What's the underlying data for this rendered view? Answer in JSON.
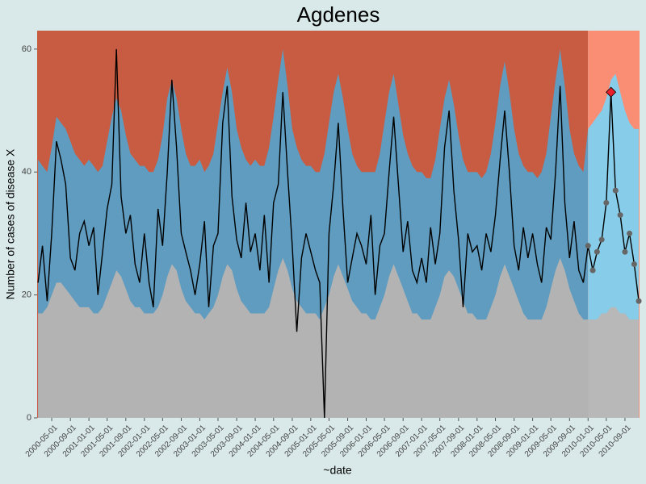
{
  "chart_data": {
    "type": "line",
    "title": "Agdenes",
    "x_label": "~date",
    "y_label": "Number of cases of disease X",
    "x": [
      "2000-02-01",
      "2000-03-01",
      "2000-04-01",
      "2000-05-01",
      "2000-06-01",
      "2000-07-01",
      "2000-08-01",
      "2000-09-01",
      "2000-10-01",
      "2000-11-01",
      "2000-12-01",
      "2001-01-01",
      "2001-02-01",
      "2001-03-01",
      "2001-04-01",
      "2001-05-01",
      "2001-06-01",
      "2001-07-01",
      "2001-08-01",
      "2001-09-01",
      "2001-10-01",
      "2001-11-01",
      "2001-12-01",
      "2002-01-01",
      "2002-02-01",
      "2002-03-01",
      "2002-04-01",
      "2002-05-01",
      "2002-06-01",
      "2002-07-01",
      "2002-08-01",
      "2002-09-01",
      "2002-10-01",
      "2002-11-01",
      "2002-12-01",
      "2003-01-01",
      "2003-02-01",
      "2003-03-01",
      "2003-04-01",
      "2003-05-01",
      "2003-06-01",
      "2003-07-01",
      "2003-08-01",
      "2003-09-01",
      "2003-10-01",
      "2003-11-01",
      "2003-12-01",
      "2004-01-01",
      "2004-02-01",
      "2004-03-01",
      "2004-04-01",
      "2004-05-01",
      "2004-06-01",
      "2004-07-01",
      "2004-08-01",
      "2004-09-01",
      "2004-10-01",
      "2004-11-01",
      "2004-12-01",
      "2005-01-01",
      "2005-02-01",
      "2005-03-01",
      "2005-04-01",
      "2005-05-01",
      "2005-06-01",
      "2005-07-01",
      "2005-08-01",
      "2005-09-01",
      "2005-10-01",
      "2005-11-01",
      "2005-12-01",
      "2006-01-01",
      "2006-02-01",
      "2006-03-01",
      "2006-04-01",
      "2006-05-01",
      "2006-06-01",
      "2006-07-01",
      "2006-08-01",
      "2006-09-01",
      "2006-10-01",
      "2006-11-01",
      "2006-12-01",
      "2007-01-01",
      "2007-02-01",
      "2007-03-01",
      "2007-04-01",
      "2007-05-01",
      "2007-06-01",
      "2007-07-01",
      "2007-08-01",
      "2007-09-01",
      "2007-10-01",
      "2007-11-01",
      "2007-12-01",
      "2008-01-01",
      "2008-02-01",
      "2008-03-01",
      "2008-04-01",
      "2008-05-01",
      "2008-06-01",
      "2008-07-01",
      "2008-08-01",
      "2008-09-01",
      "2008-10-01",
      "2008-11-01",
      "2008-12-01",
      "2009-01-01",
      "2009-02-01",
      "2009-03-01",
      "2009-04-01",
      "2009-05-01",
      "2009-06-01",
      "2009-07-01",
      "2009-08-01",
      "2009-09-01",
      "2009-10-01",
      "2009-11-01",
      "2009-12-01",
      "2010-01-01",
      "2010-02-01",
      "2010-03-01",
      "2010-04-01",
      "2010-05-01",
      "2010-06-01",
      "2010-07-01",
      "2010-08-01",
      "2010-09-01",
      "2010-10-01",
      "2010-11-01",
      "2010-12-01"
    ],
    "values": [
      22,
      28,
      19,
      30,
      45,
      42,
      38,
      26,
      24,
      30,
      32,
      28,
      31,
      20,
      27,
      34,
      38,
      60,
      36,
      30,
      33,
      25,
      22,
      30,
      22,
      18,
      34,
      28,
      40,
      55,
      44,
      30,
      27,
      24,
      20,
      25,
      32,
      18,
      28,
      30,
      48,
      54,
      36,
      29,
      26,
      35,
      27,
      30,
      24,
      33,
      22,
      35,
      38,
      53,
      40,
      28,
      14,
      26,
      30,
      27,
      24,
      22,
      0,
      30,
      38,
      48,
      34,
      22,
      26,
      30,
      28,
      25,
      33,
      20,
      28,
      30,
      40,
      49,
      38,
      27,
      32,
      24,
      22,
      26,
      22,
      31,
      25,
      30,
      44,
      50,
      37,
      29,
      18,
      30,
      27,
      28,
      24,
      30,
      27,
      33,
      42,
      50,
      40,
      28,
      24,
      31,
      26,
      30,
      25,
      22,
      31,
      29,
      40,
      54,
      35,
      26,
      32,
      24,
      22,
      28,
      24,
      27,
      29,
      35,
      53,
      37,
      33,
      27,
      30,
      25,
      19
    ],
    "upper_threshold": [
      42,
      41,
      40,
      44,
      49,
      48,
      47,
      45,
      43,
      42,
      41,
      42,
      41,
      40,
      41,
      45,
      49,
      52,
      50,
      46,
      43,
      42,
      41,
      41,
      40,
      40,
      42,
      46,
      52,
      55,
      52,
      47,
      43,
      41,
      41,
      42,
      40,
      41,
      43,
      48,
      53,
      57,
      53,
      47,
      44,
      42,
      41,
      42,
      41,
      41,
      44,
      49,
      55,
      60,
      54,
      47,
      44,
      42,
      41,
      41,
      40,
      40,
      43,
      48,
      53,
      56,
      52,
      47,
      43,
      41,
      40,
      40,
      40,
      40,
      43,
      48,
      53,
      56,
      51,
      46,
      43,
      41,
      40,
      40,
      39,
      39,
      42,
      47,
      52,
      55,
      51,
      46,
      42,
      40,
      40,
      40,
      39,
      40,
      43,
      48,
      54,
      58,
      53,
      47,
      43,
      41,
      40,
      40,
      39,
      40,
      43,
      49,
      55,
      60,
      54,
      47,
      43,
      41,
      40,
      47,
      48,
      49,
      50,
      52,
      55,
      56,
      53,
      50,
      48,
      47,
      47
    ],
    "lower_threshold": [
      17,
      17,
      18,
      20,
      22,
      22,
      21,
      20,
      19,
      18,
      18,
      18,
      17,
      17,
      18,
      20,
      22,
      24,
      23,
      21,
      19,
      18,
      18,
      17,
      17,
      17,
      18,
      20,
      23,
      25,
      24,
      21,
      19,
      18,
      17,
      17,
      16,
      17,
      18,
      20,
      23,
      25,
      24,
      21,
      19,
      18,
      17,
      17,
      17,
      17,
      18,
      21,
      24,
      26,
      24,
      21,
      19,
      18,
      17,
      17,
      17,
      16,
      18,
      20,
      23,
      25,
      23,
      21,
      19,
      18,
      17,
      17,
      16,
      16,
      18,
      20,
      23,
      25,
      23,
      21,
      19,
      17,
      17,
      16,
      16,
      16,
      18,
      20,
      23,
      24,
      23,
      21,
      19,
      17,
      17,
      16,
      16,
      16,
      18,
      20,
      23,
      25,
      23,
      21,
      19,
      17,
      16,
      16,
      16,
      16,
      18,
      21,
      24,
      26,
      24,
      21,
      19,
      17,
      16,
      16,
      16,
      16,
      17,
      17,
      18,
      18,
      17,
      17,
      16,
      16,
      16
    ],
    "alarms": [
      {
        "x": "2010-06-01",
        "value": 53
      }
    ],
    "period_start": "2010-01-01",
    "xlim": [
      "2000-01-26",
      "2010-12-06"
    ],
    "xticks": [
      "2000-05-01",
      "2000-09-01",
      "2001-01-01",
      "2001-05-01",
      "2001-09-01",
      "2002-01-01",
      "2002-05-01",
      "2002-09-01",
      "2003-01-01",
      "2003-05-01",
      "2003-09-01",
      "2004-01-01",
      "2004-05-01",
      "2004-09-01",
      "2005-01-01",
      "2005-05-01",
      "2005-09-01",
      "2006-01-01",
      "2006-05-01",
      "2006-09-01",
      "2007-01-01",
      "2007-05-01",
      "2007-09-01",
      "2008-01-01",
      "2008-05-01",
      "2008-09-01",
      "2009-01-01",
      "2009-05-01",
      "2009-09-01",
      "2010-01-01",
      "2010-05-01",
      "2010-09-01"
    ],
    "ylim": [
      0,
      63
    ],
    "yticks": [
      0,
      20,
      40,
      60
    ],
    "colors": {
      "line": "#000000",
      "below": "#b3b3b3",
      "band": "#5f9cbf",
      "above": "#c75c43",
      "below_new": "#b8b8b8",
      "band_new": "#87cce8",
      "above_new": "#f98e74",
      "point": "#666666",
      "alarm": "#e8202a"
    }
  }
}
